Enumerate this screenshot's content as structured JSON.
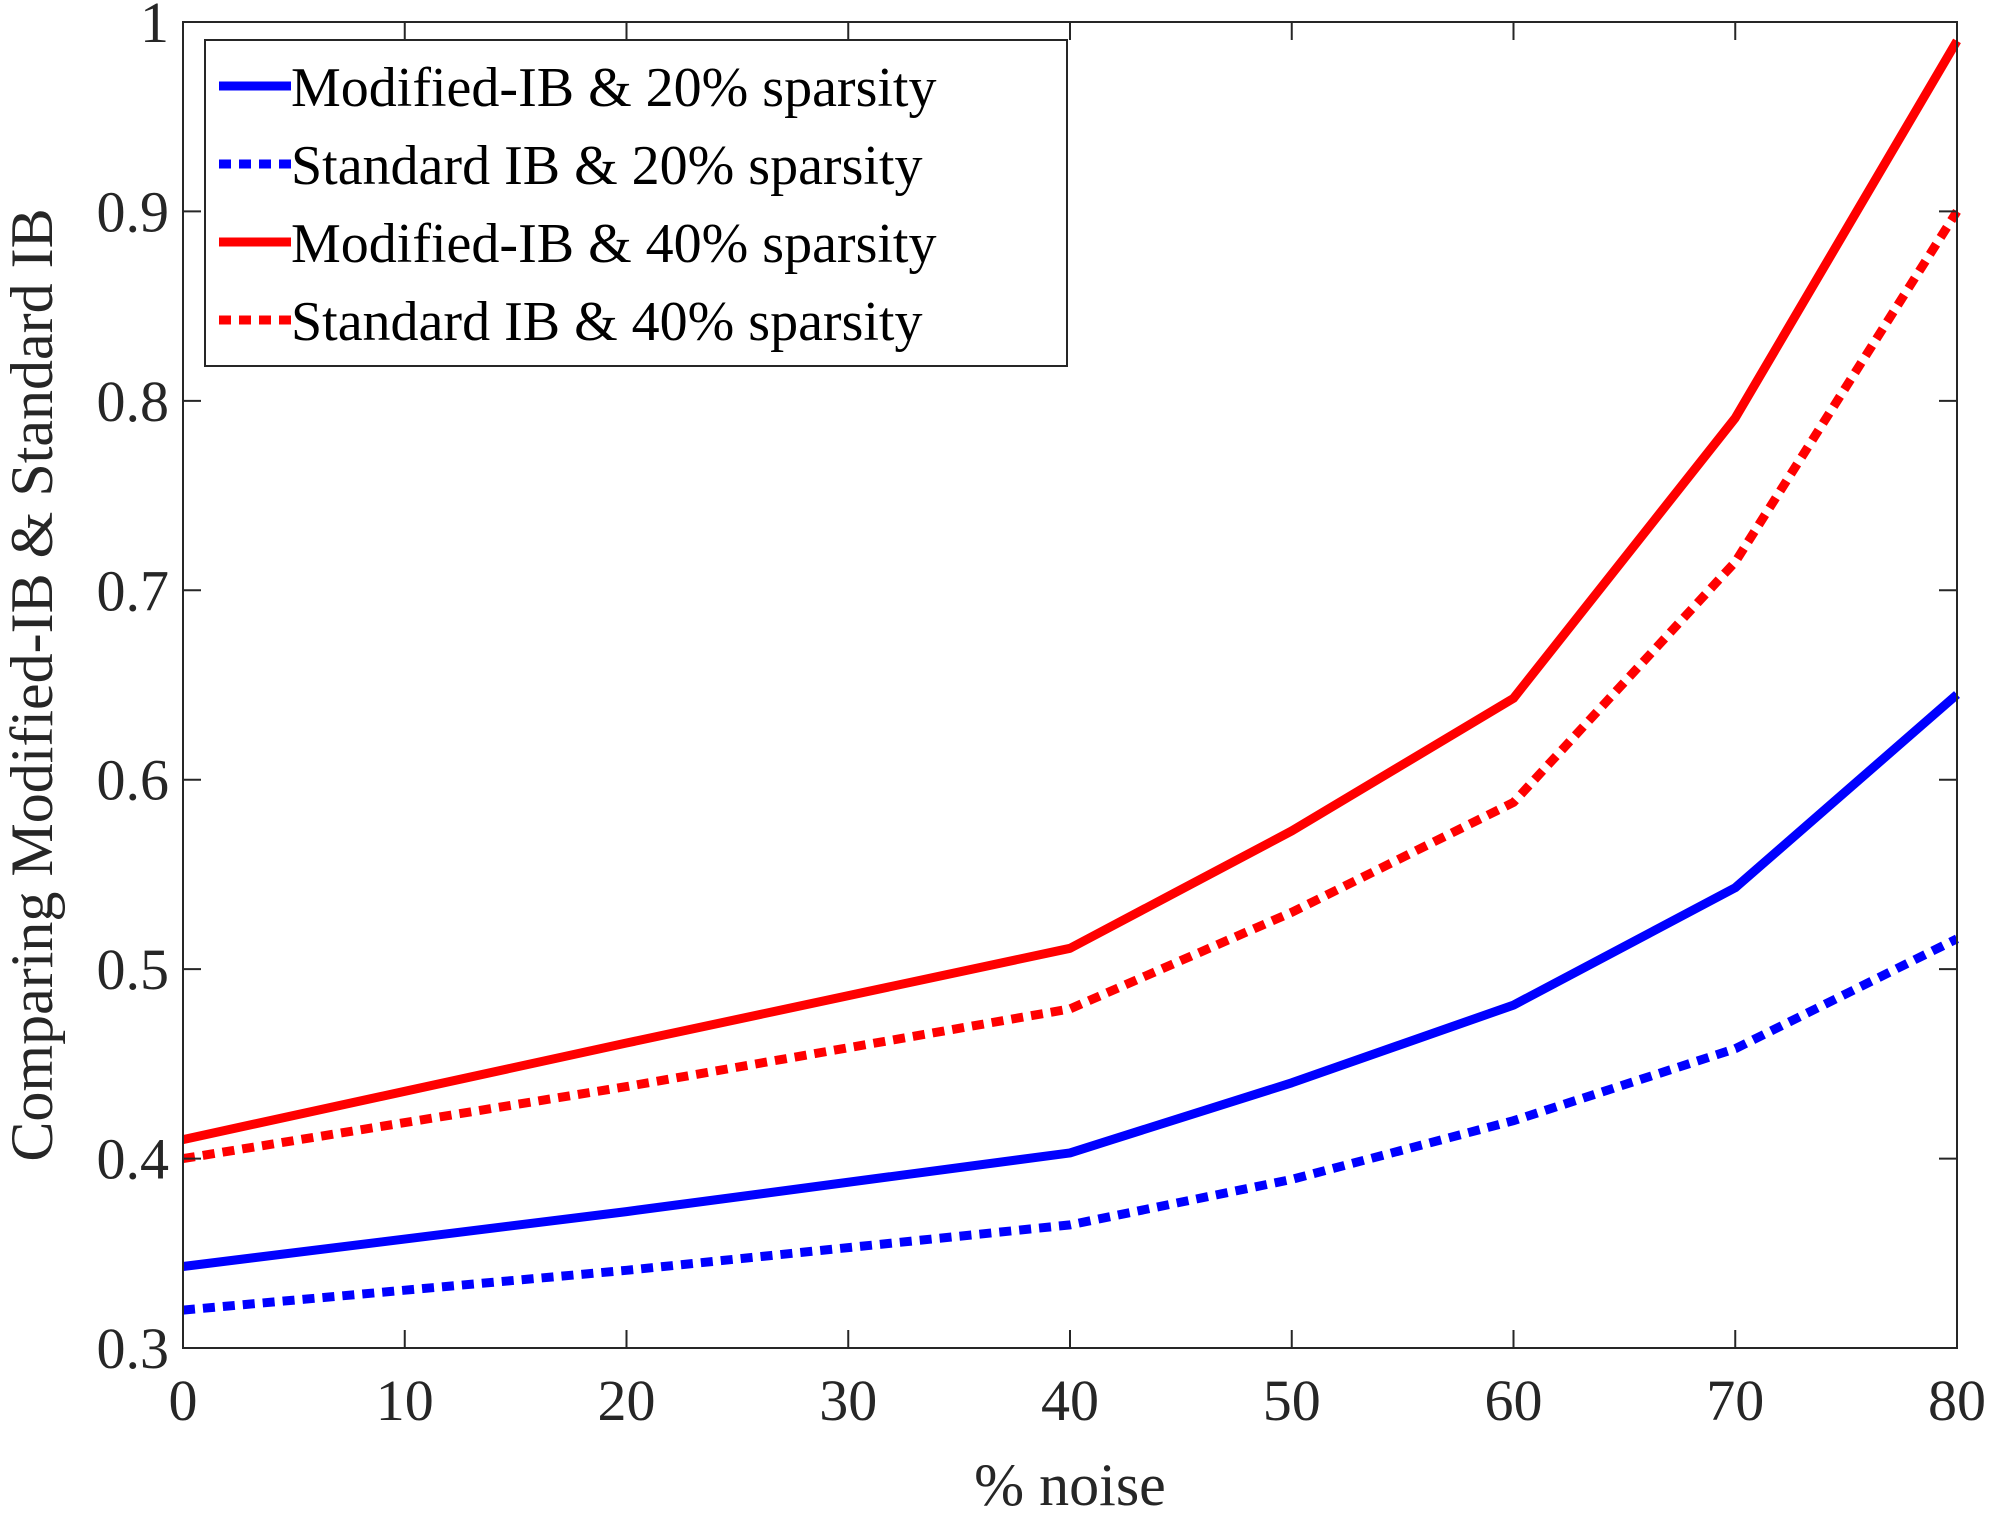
{
  "chart_data": {
    "type": "line",
    "title": "",
    "xlabel": "% noise",
    "ylabel": "Comparing Modified-IB & Standard IB",
    "xlim": [
      0,
      80
    ],
    "ylim": [
      0.3,
      1
    ],
    "xticks": [
      0,
      10,
      20,
      30,
      40,
      50,
      60,
      70,
      80
    ],
    "yticks": [
      0.3,
      0.4,
      0.5,
      0.6,
      0.7,
      0.8,
      0.9,
      1
    ],
    "ytick_labels": [
      "0.3",
      "0.4",
      "0.5",
      "0.6",
      "0.7",
      "0.8",
      "0.9",
      "1"
    ],
    "grid": false,
    "legend_position": "top-left",
    "series": [
      {
        "name": "Modified-IB & 20% sparsity",
        "color": "#0000ff",
        "style": "solid",
        "x": [
          0,
          20,
          40,
          50,
          60,
          70,
          80
        ],
        "values": [
          0.343,
          0.372,
          0.403,
          0.44,
          0.481,
          0.543,
          0.645
        ]
      },
      {
        "name": "Standard IB &  20% sparsity",
        "color": "#0000ff",
        "style": "dotted",
        "x": [
          0,
          20,
          40,
          50,
          60,
          70,
          80
        ],
        "values": [
          0.32,
          0.341,
          0.365,
          0.389,
          0.42,
          0.458,
          0.516
        ]
      },
      {
        "name": "Modified-IB & 40% sparsity",
        "color": "#ff0000",
        "style": "solid",
        "x": [
          0,
          20,
          40,
          50,
          60,
          70,
          80
        ],
        "values": [
          0.41,
          0.461,
          0.511,
          0.573,
          0.643,
          0.791,
          0.99
        ]
      },
      {
        "name": "Standard IB &  40% sparsity",
        "color": "#ff0000",
        "style": "dotted",
        "x": [
          0,
          20,
          40,
          50,
          60,
          70,
          80
        ],
        "values": [
          0.4,
          0.438,
          0.479,
          0.53,
          0.588,
          0.715,
          0.9
        ]
      }
    ]
  }
}
